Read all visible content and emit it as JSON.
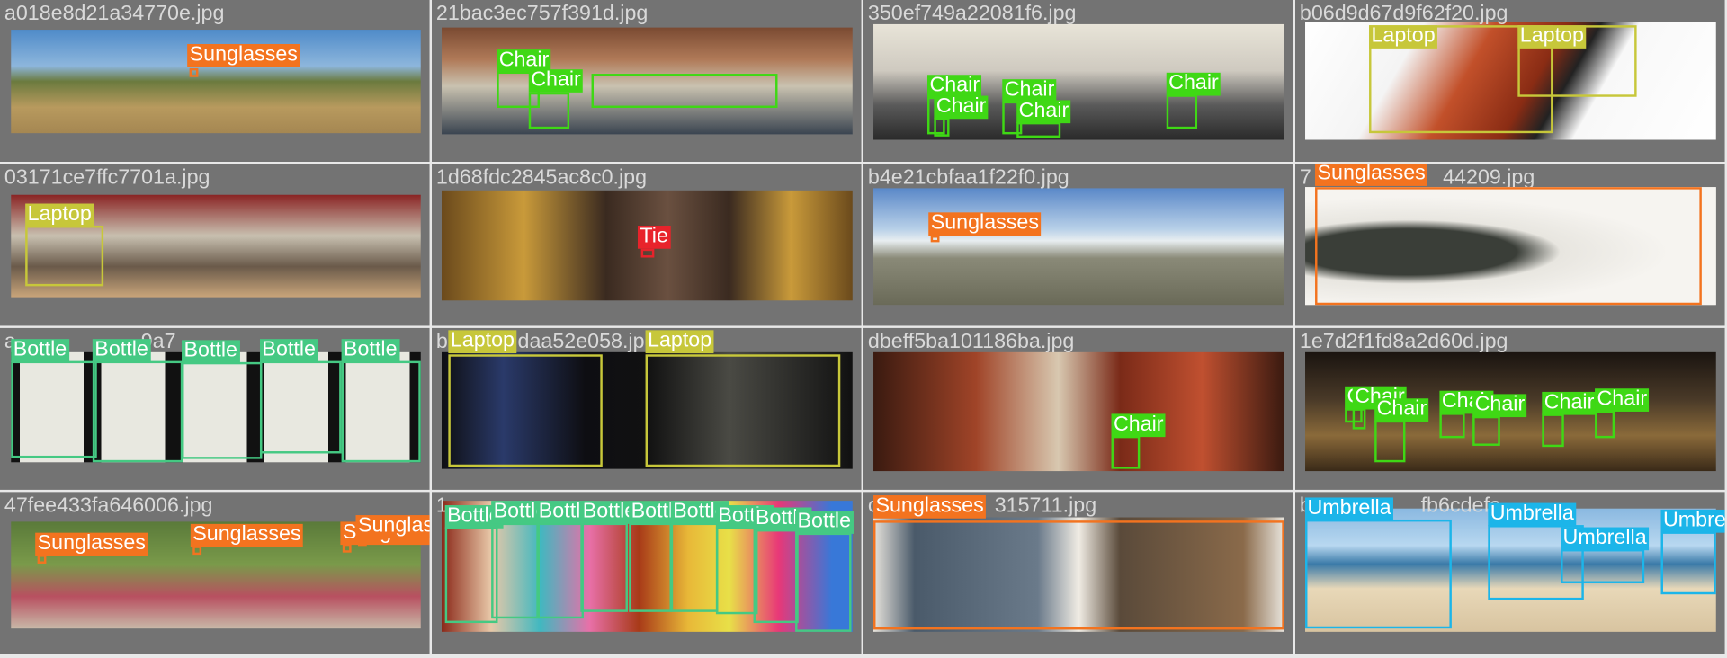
{
  "class_colors": {
    "Sunglasses": "#f3731f",
    "Chair": "#3fd815",
    "Laptop": "#c7c73a",
    "Tie": "#e8232b",
    "Bottle": "#45c983",
    "Umbrella": "#1cb5e9"
  },
  "tiles": [
    {
      "filename": "a018e8d21a34770e.jpg",
      "boxes": [
        {
          "label": "Sunglasses"
        }
      ]
    },
    {
      "filename": "21bac3ec757f391d.jpg",
      "boxes": [
        {
          "label": "Chair"
        },
        {
          "label": "Chair"
        }
      ]
    },
    {
      "filename": "350ef749a22081f6.jpg",
      "boxes": [
        {
          "label": "Chair"
        },
        {
          "label": "Chair"
        },
        {
          "label": "Chair"
        },
        {
          "label": "Chair"
        },
        {
          "label": "Chair"
        }
      ]
    },
    {
      "filename": "b06d9d67d9f62f20.jpg",
      "boxes": [
        {
          "label": "Laptop"
        },
        {
          "label": "Laptop"
        }
      ]
    },
    {
      "filename": "03171ce7ffc7701a.jpg",
      "boxes": [
        {
          "label": "Laptop"
        }
      ]
    },
    {
      "filename": "1d68fdc2845ac8c0.jpg",
      "boxes": [
        {
          "label": "Tie"
        }
      ]
    },
    {
      "filename": "b4e21cbfaa1f22f0.jpg",
      "boxes": [
        {
          "label": "Sunglasses"
        }
      ]
    },
    {
      "filename": "7",
      "filename_tail": "44209.jpg",
      "boxes": [
        {
          "label": "Sunglasses"
        }
      ]
    },
    {
      "filename": "a",
      "filename_tail": "9a7",
      "boxes": [
        {
          "label": "Bottle"
        },
        {
          "label": "Bottle"
        },
        {
          "label": "Bottle"
        },
        {
          "label": "Bottle"
        },
        {
          "label": "Bottle"
        }
      ]
    },
    {
      "filename": "b",
      "filename_tail": "daa52e058.jpg",
      "boxes": [
        {
          "label": "Laptop"
        },
        {
          "label": "Laptop"
        }
      ]
    },
    {
      "filename": "dbeff5ba101186ba.jpg",
      "boxes": [
        {
          "label": "Chair"
        }
      ]
    },
    {
      "filename": "1e7d2f1fd8a2d60d.jpg",
      "boxes": [
        {
          "label": "Chair"
        },
        {
          "label": "Chair"
        },
        {
          "label": "Chair"
        },
        {
          "label": "Chair"
        },
        {
          "label": "Chair"
        },
        {
          "label": "Chair"
        },
        {
          "label": "Chair"
        }
      ]
    },
    {
      "filename": "47fee433fa646006.jpg",
      "boxes": [
        {
          "label": "Sunglasses"
        },
        {
          "label": "Sunglasses"
        },
        {
          "label": "Sunglasses"
        },
        {
          "label": "Sunglasses"
        }
      ]
    },
    {
      "filename": "1",
      "boxes": [
        {
          "label": "Bottle"
        },
        {
          "label": "Bottle"
        },
        {
          "label": "Bottle"
        },
        {
          "label": "Bottle"
        },
        {
          "label": "Bottle"
        },
        {
          "label": "Bottle"
        },
        {
          "label": "Bottle"
        },
        {
          "label": "Bottle"
        },
        {
          "label": "Bottle"
        }
      ]
    },
    {
      "filename": "c",
      "filename_tail": "315711.jpg",
      "boxes": [
        {
          "label": "Sunglasses"
        }
      ]
    },
    {
      "filename": "b",
      "filename_tail": "fb6cdefa",
      "boxes": [
        {
          "label": "Umbrella"
        },
        {
          "label": "Umbrella"
        },
        {
          "label": "Umbrella"
        },
        {
          "label": "Umbrella"
        }
      ]
    }
  ]
}
